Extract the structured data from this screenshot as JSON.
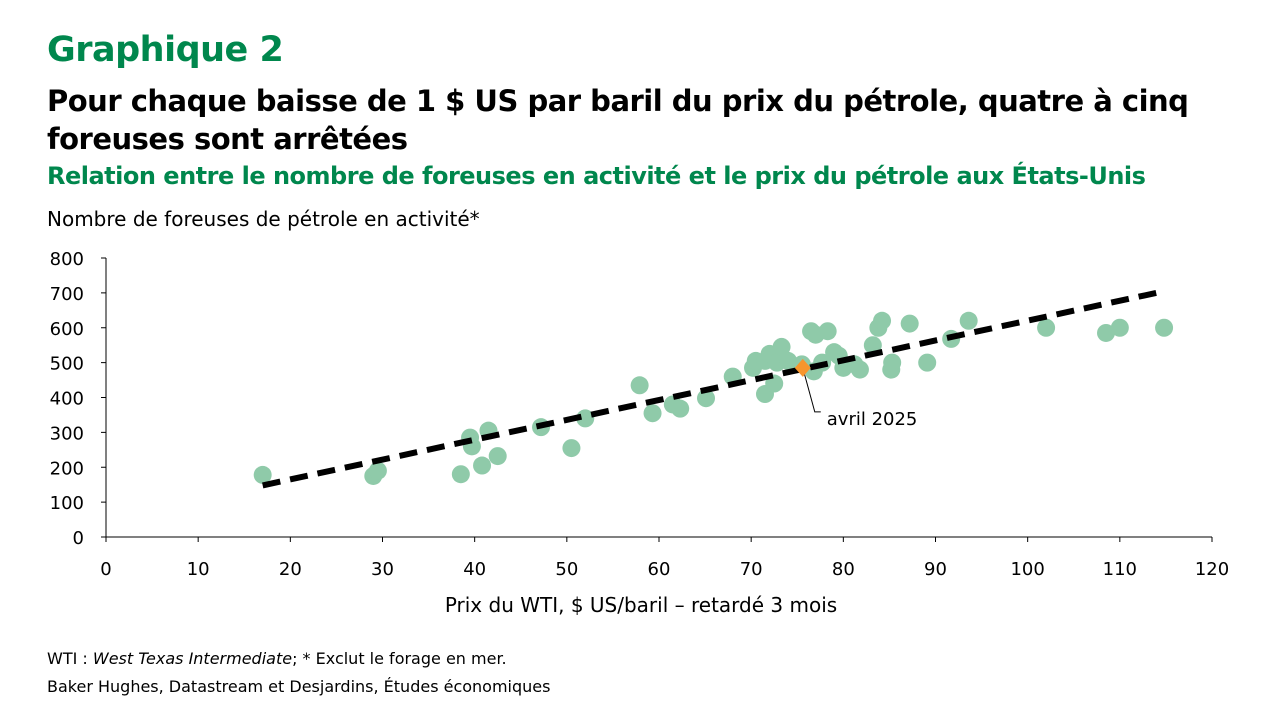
{
  "header": {
    "graph_number": "Graphique 2",
    "title": "Pour chaque baisse de 1 $ US par baril du prix du pétrole, quatre à cinq foreuses sont arrêtées",
    "subtitle": "Relation entre le nombre de foreuses en activité et le prix du pétrole aux États-Unis"
  },
  "notes": {
    "line1_prefix": "WTI : ",
    "line1_italic": "West Texas Intermediate",
    "line1_suffix": "; * Exclut le forage en mer.",
    "source": "Baker Hughes, Datastream et Desjardins, Études économiques"
  },
  "chart_data": {
    "type": "scatter",
    "ylabel": "Nombre de foreuses de pétrole en activité*",
    "xlabel": "Prix du WTI, $ US/baril – retardé 3 mois",
    "xlim": [
      0,
      120
    ],
    "ylim": [
      0,
      800
    ],
    "xticks": [
      0,
      10,
      20,
      30,
      40,
      50,
      60,
      70,
      80,
      90,
      100,
      110,
      120
    ],
    "yticks": [
      0,
      100,
      200,
      300,
      400,
      500,
      600,
      700,
      800
    ],
    "points": [
      [
        17,
        178
      ],
      [
        29,
        175
      ],
      [
        29.5,
        190
      ],
      [
        38.5,
        180
      ],
      [
        39.5,
        285
      ],
      [
        39.7,
        260
      ],
      [
        40.8,
        205
      ],
      [
        41.5,
        305
      ],
      [
        42.5,
        232
      ],
      [
        47.2,
        315
      ],
      [
        50.5,
        255
      ],
      [
        52,
        340
      ],
      [
        57.9,
        435
      ],
      [
        59.3,
        355
      ],
      [
        61.5,
        380
      ],
      [
        62.3,
        368
      ],
      [
        65.1,
        398
      ],
      [
        68,
        460
      ],
      [
        70.2,
        485
      ],
      [
        70.5,
        505
      ],
      [
        71.5,
        410
      ],
      [
        71.5,
        505
      ],
      [
        72,
        525
      ],
      [
        72.5,
        440
      ],
      [
        72.8,
        500
      ],
      [
        73.3,
        545
      ],
      [
        74,
        505
      ],
      [
        75.5,
        495
      ],
      [
        76.5,
        590
      ],
      [
        76.8,
        475
      ],
      [
        77,
        580
      ],
      [
        77.7,
        500
      ],
      [
        78.3,
        590
      ],
      [
        79,
        530
      ],
      [
        79.5,
        520
      ],
      [
        80,
        485
      ],
      [
        81.2,
        495
      ],
      [
        81.8,
        480
      ],
      [
        83.2,
        550
      ],
      [
        83.8,
        600
      ],
      [
        84.2,
        620
      ],
      [
        85.2,
        480
      ],
      [
        85.3,
        500
      ],
      [
        87.2,
        612
      ],
      [
        89.1,
        500
      ],
      [
        91.7,
        568
      ],
      [
        93.6,
        620
      ],
      [
        102,
        600
      ],
      [
        108.5,
        585
      ],
      [
        110,
        600
      ],
      [
        114.8,
        600
      ]
    ],
    "highlight": {
      "x": 75.6,
      "y": 485,
      "label": "avril 2025"
    },
    "trendline": [
      [
        17,
        148
      ],
      [
        114.5,
        703
      ]
    ],
    "colors": {
      "points": "#8fcaa9",
      "highlight": "#f7952d",
      "trend": "#000000",
      "title": "#00874d"
    }
  }
}
